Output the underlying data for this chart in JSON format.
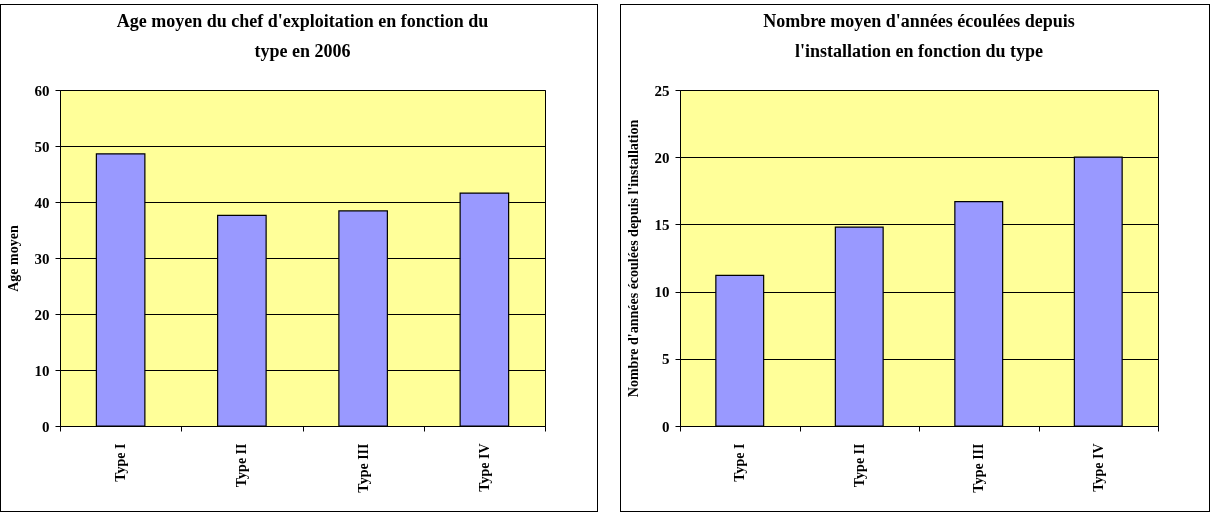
{
  "chart_data": [
    {
      "type": "bar",
      "title": "Age moyen du chef d'exploitation en fonction du type en  2006",
      "ylabel": "Age moyen",
      "categories": [
        "Type I",
        "Type II",
        "Type III",
        "Type IV"
      ],
      "values": [
        48.6,
        37.6,
        38.4,
        41.6
      ],
      "color": "#9999ff",
      "ylim": [
        0,
        60
      ],
      "yticks": [
        0,
        10,
        20,
        30,
        40,
        50,
        60
      ],
      "grid": "y"
    },
    {
      "type": "bar",
      "title": "Nombre moyen d'années écoulées depuis l'installation en fonction du type",
      "ylabel": "Nombre d'années écoulées depuis l'installation",
      "categories": [
        "Type I",
        "Type II",
        "Type III",
        "Type IV"
      ],
      "values": [
        11.2,
        14.8,
        16.7,
        20.0
      ],
      "color": "#9999ff",
      "ylim": [
        0,
        25
      ],
      "yticks": [
        0,
        5,
        10,
        15,
        20,
        25
      ],
      "grid": "y"
    }
  ]
}
